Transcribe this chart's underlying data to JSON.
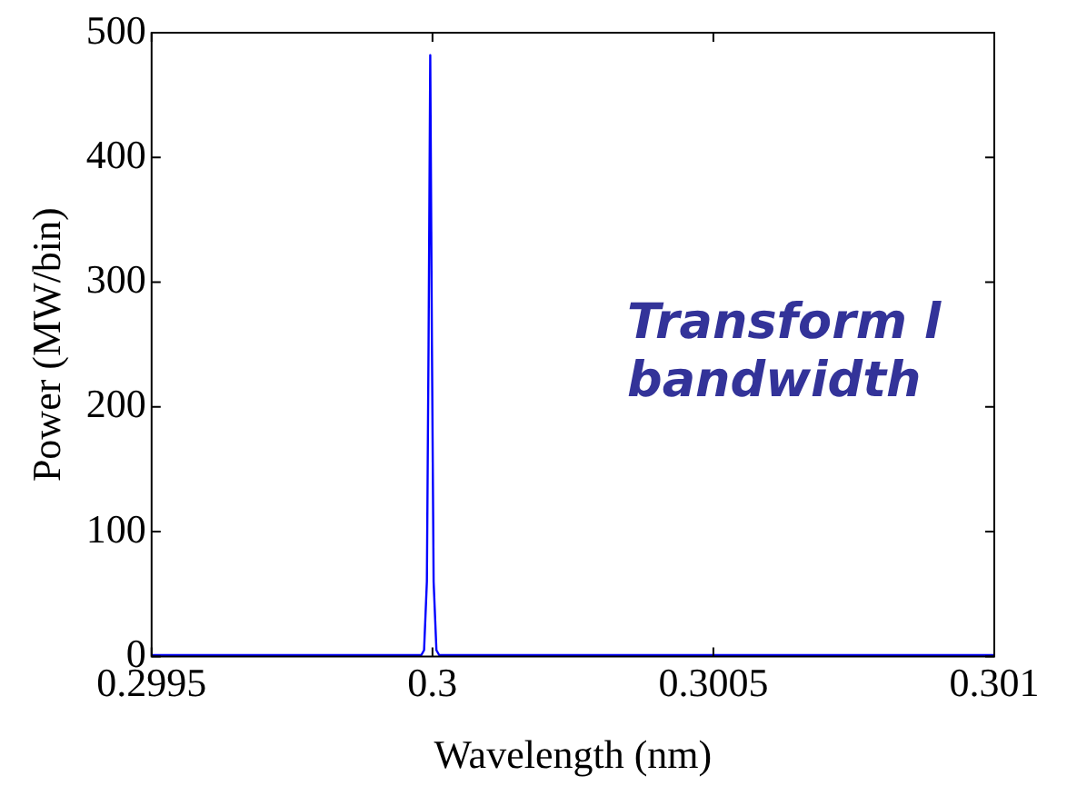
{
  "chart_data": {
    "type": "line",
    "xlabel": "Wavelength (nm)",
    "ylabel": "Power (MW/bin)",
    "x": [
      0.2995,
      0.29997,
      0.29998,
      0.299985,
      0.29999,
      0.299993,
      0.299996,
      0.299999,
      0.300002,
      0.300007,
      0.300012,
      0.30002,
      0.301
    ],
    "series": [
      {
        "color": "#0000ff",
        "values": [
          1,
          1,
          1,
          5,
          60,
          250,
          482,
          250,
          60,
          5,
          1,
          1,
          1
        ]
      }
    ],
    "xlim": [
      0.2995,
      0.301
    ],
    "xticks": [
      0.2995,
      0.3,
      0.3005,
      0.301
    ],
    "ylim": [
      0,
      500
    ],
    "yticks": [
      0,
      100,
      200,
      300,
      400,
      500
    ],
    "annotations": [
      "Transform l",
      "bandwidth"
    ]
  }
}
